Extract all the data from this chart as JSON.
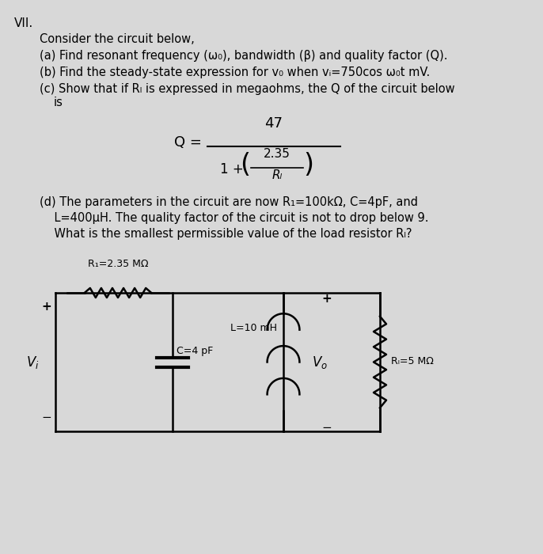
{
  "background_color": "#d8d8d8",
  "title_number": "VII.",
  "line0": "Consider the circuit below,",
  "line1a": "(a) Find resonant frequency (ω",
  "line1b": "0), bandwidth (β) and quality factor (Q).",
  "line2": "(b) Find the steady-state expression for v₀ when vᵢ=750cos ω₀t mV.",
  "line3": "(c) Show that if Rₗ is expressed in megaohms, the Q of the circuit below",
  "line3b": "    is",
  "line_d1": "(d) The parameters in the circuit are now R₁=100kΩ, C=4pF, and",
  "line_d2": "    L=400μH. The quality factor of the circuit is not to drop below 9.",
  "line_d3": "    What is the smallest permissible value of the load resistor Rₗ?",
  "R1_label": "R₁=2.35 MΩ",
  "C_label": "C=4 pF",
  "L_label": "L=10 mH",
  "Vo_label": "V₀",
  "RL_label": "Rₗ=5 MΩ",
  "Vi_label": "Vᵢ",
  "plus": "+",
  "minus": "−"
}
